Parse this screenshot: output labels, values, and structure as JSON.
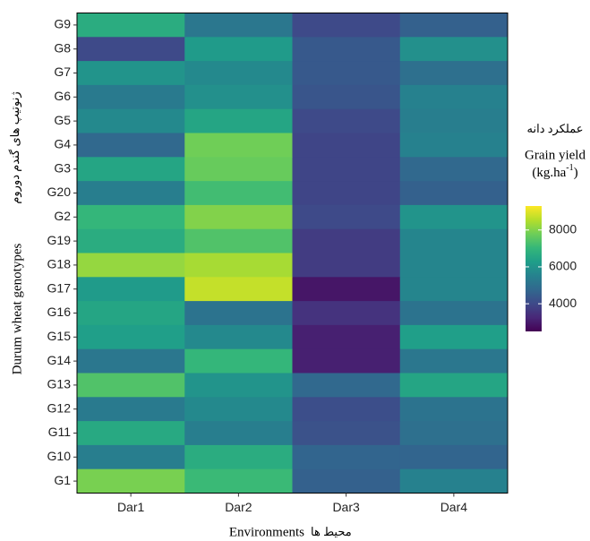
{
  "chart_data": {
    "type": "heatmap",
    "x_label": "Environments",
    "x_label_fa": "محیط ها",
    "y_label": "Durum wheat genotypes",
    "y_label_fa": "ژنوتیپ های گندم دوروم",
    "legend_title_fa": "عملکرد دانه",
    "legend_title": "Grain yield",
    "legend_unit": [
      "(kg.ha",
      "-1",
      ")"
    ],
    "x_categories": [
      "Dar1",
      "Dar2",
      "Dar3",
      "Dar4"
    ],
    "y_categories": [
      "G9",
      "G8",
      "G7",
      "G6",
      "G5",
      "G4",
      "G3",
      "G20",
      "G2",
      "G19",
      "G18",
      "G17",
      "G16",
      "G15",
      "G14",
      "G13",
      "G12",
      "G11",
      "G10",
      "G1"
    ],
    "values": [
      [
        6700,
        5200,
        4000,
        4600
      ],
      [
        4000,
        6200,
        4400,
        5900
      ],
      [
        6000,
        5700,
        4400,
        5000
      ],
      [
        5300,
        5900,
        4300,
        5500
      ],
      [
        5700,
        6500,
        4000,
        5400
      ],
      [
        4800,
        7800,
        3900,
        5500
      ],
      [
        6500,
        7700,
        3900,
        4800
      ],
      [
        5400,
        7200,
        3900,
        4600
      ],
      [
        7000,
        8000,
        4000,
        6000
      ],
      [
        6700,
        7400,
        3700,
        5600
      ],
      [
        8200,
        8400,
        3700,
        5600
      ],
      [
        6200,
        8700,
        2900,
        5600
      ],
      [
        6500,
        5100,
        3500,
        5100
      ],
      [
        6300,
        5700,
        3100,
        6300
      ],
      [
        5200,
        7000,
        3100,
        5200
      ],
      [
        7400,
        6000,
        4800,
        6500
      ],
      [
        5300,
        5700,
        4100,
        5100
      ],
      [
        6600,
        5400,
        4200,
        5000
      ],
      [
        5400,
        6700,
        4700,
        4700
      ],
      [
        7900,
        7100,
        4600,
        5500
      ]
    ],
    "colormap": "viridis",
    "zlim": [
      2500,
      9300
    ],
    "zticks": [
      4000,
      6000,
      8000
    ]
  }
}
